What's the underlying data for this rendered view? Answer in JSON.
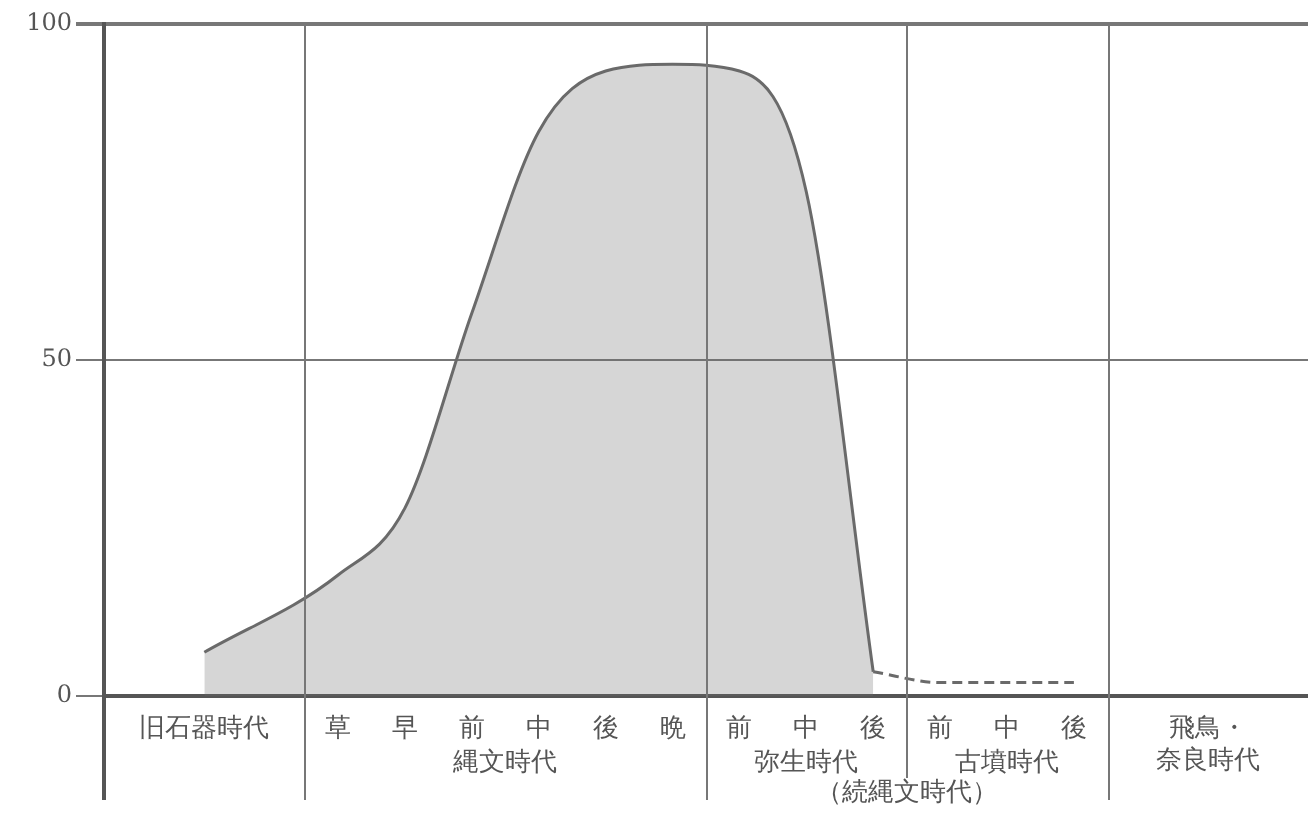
{
  "chart_data": {
    "type": "area",
    "categories": [
      "旧石器時代",
      "草",
      "早",
      "前",
      "中",
      "後",
      "晩",
      "前",
      "中",
      "後",
      "前",
      "中",
      "後",
      "飛鳥・奈良時代"
    ],
    "ylim": [
      0,
      100
    ],
    "yticks": [
      0,
      50,
      100
    ],
    "grid": true,
    "annotations": [
      "縄文時代",
      "弥生時代",
      "古墳時代",
      "（続縄文時代）"
    ],
    "series": [
      {
        "type": "area",
        "color": "#6a6a6a",
        "values": [
          6.5,
          18,
          28,
          57,
          84,
          93,
          94,
          93,
          75,
          3.6,
          null,
          null,
          null,
          null
        ]
      },
      {
        "type": "line",
        "line_style": "dashed",
        "color": "#6a6a6a",
        "values": [
          null,
          null,
          null,
          null,
          null,
          null,
          null,
          null,
          null,
          3.6,
          2,
          2,
          2,
          null
        ]
      }
    ]
  }
}
